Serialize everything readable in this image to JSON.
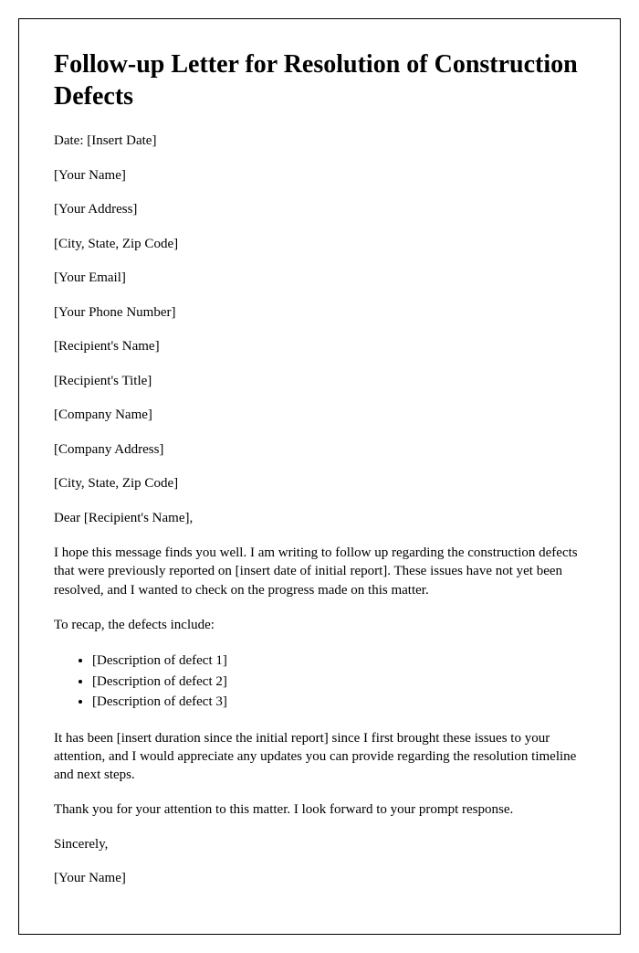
{
  "title": "Follow-up Letter for Resolution of Construction Defects",
  "header_lines": {
    "date": "Date: [Insert Date]",
    "your_name": "[Your Name]",
    "your_address": "[Your Address]",
    "your_city": "[City, State, Zip Code]",
    "your_email": "[Your Email]",
    "your_phone": "[Your Phone Number]",
    "recipient_name": "[Recipient's Name]",
    "recipient_title": "[Recipient's Title]",
    "company_name": "[Company Name]",
    "company_address": "[Company Address]",
    "company_city": "[City, State, Zip Code]"
  },
  "salutation": "Dear [Recipient's Name],",
  "paragraphs": {
    "intro": "I hope this message finds you well. I am writing to follow up regarding the construction defects that were previously reported on [insert date of initial report]. These issues have not yet been resolved, and I wanted to check on the progress made on this matter.",
    "recap_intro": "To recap, the defects include:",
    "followup": "It has been [insert duration since the initial report] since I first brought these issues to your attention, and I would appreciate any updates you can provide regarding the resolution timeline and next steps.",
    "thanks": "Thank you for your attention to this matter. I look forward to your prompt response.",
    "closing": "Sincerely,",
    "signature": "[Your Name]"
  },
  "defects": {
    "item1": "[Description of defect 1]",
    "item2": "[Description of defect 2]",
    "item3": "[Description of defect 3]"
  }
}
